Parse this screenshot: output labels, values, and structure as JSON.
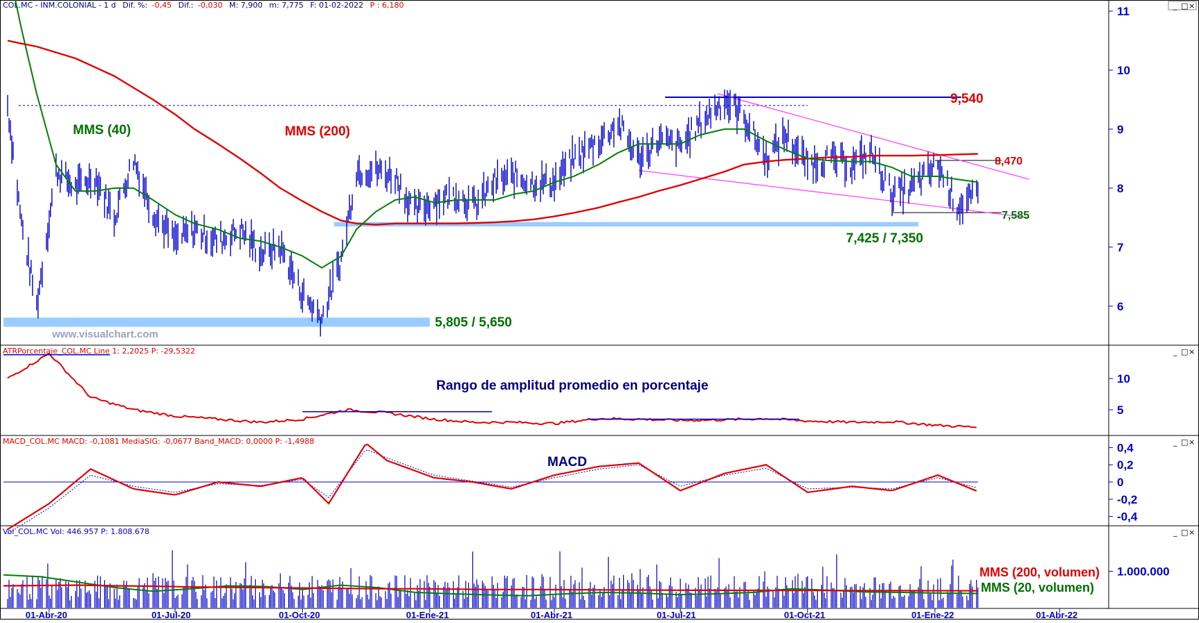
{
  "colors": {
    "price": "#0000cc",
    "mms200": "#e00000",
    "mms40": "#008000",
    "support": "#99ccff",
    "channel": "#ff44ff",
    "axis": "#0000cc",
    "text_green": "#007000",
    "text_red": "#e00000",
    "text_navy": "#000080",
    "watermark": "#a0a0c0"
  },
  "panels": {
    "price": {
      "header": {
        "title": "COL.MC - INM.COLONIAL - 1 d",
        "dif_pct_label": "Dif. %:",
        "dif_pct_value": "-0,45",
        "dif_label": "Dif.:",
        "dif_value": "-0,030",
        "max_label": "M: 7,900",
        "min_label": "m: 7,775",
        "date_label": "F: 01-02-2022",
        "p_label": "P : 6,180"
      },
      "labels": {
        "mms40": "MMS (40)",
        "mms200": "MMS (200)",
        "level_9540": "9,540",
        "level_8470": "8,470",
        "level_7585": "7,585",
        "support_high": "7,425 / 7,350",
        "support_low": "5,805 / 5,650",
        "watermark": "www.visualchart.com"
      }
    },
    "atr": {
      "header": "ATRPorcentaje_COL.MC  Line 1: 2,2025  P: -29,5322",
      "title": "Rango de amplitud promedio en porcentaje"
    },
    "macd": {
      "header": "MACD_COL.MC  MACD: -0,1081  MediaSIG: -0,0677  Band_MACD: 0,0000  P: -1,4988",
      "title": "MACD"
    },
    "volume": {
      "header": "Vol_COL.MC  Vol: 446.957  P: 1.808.678",
      "label_200": "MMS (200, volumen)",
      "label_20": "MMS (20, volumen)"
    }
  },
  "window_buttons": [
    "_",
    "□",
    "×"
  ],
  "chart_data": [
    {
      "type": "line",
      "panel": "price",
      "x": [
        "2020-03-02",
        "2020-03-12",
        "2020-03-23",
        "2020-04-06",
        "2020-04-20",
        "2020-05-04",
        "2020-05-18",
        "2020-06-01",
        "2020-06-15",
        "2020-07-01",
        "2020-07-15",
        "2020-08-01",
        "2020-08-17",
        "2020-09-01",
        "2020-09-15",
        "2020-10-01",
        "2020-10-15",
        "2020-10-29",
        "2020-11-09",
        "2020-11-23",
        "2020-12-07",
        "2020-12-21",
        "2021-01-05",
        "2021-01-20",
        "2021-02-03",
        "2021-02-17",
        "2021-03-03",
        "2021-03-17",
        "2021-04-01",
        "2021-04-15",
        "2021-05-03",
        "2021-05-17",
        "2021-06-01",
        "2021-06-15",
        "2021-07-01",
        "2021-07-15",
        "2021-08-02",
        "2021-08-16",
        "2021-09-01",
        "2021-09-15",
        "2021-10-01",
        "2021-10-15",
        "2021-11-02",
        "2021-11-16",
        "2021-12-01",
        "2021-12-15",
        "2022-01-03",
        "2022-01-17",
        "2022-02-01"
      ],
      "series": [
        {
          "name": "",
          "role": "price",
          "values": [
            9.4,
            7.4,
            6.0,
            8.3,
            8.0,
            8.2,
            7.5,
            8.5,
            7.6,
            7.1,
            7.3,
            7.1,
            7.3,
            6.9,
            7.0,
            6.2,
            5.8,
            6.8,
            8.3,
            8.3,
            8.2,
            7.6,
            7.8,
            7.9,
            7.7,
            8.1,
            8.2,
            8.1,
            8.1,
            8.5,
            8.8,
            9.1,
            8.5,
            8.8,
            8.7,
            9.1,
            9.5,
            9.2,
            8.5,
            8.9,
            8.4,
            8.5,
            8.4,
            8.6,
            7.9,
            8.0,
            8.4,
            7.7,
            7.85
          ]
        },
        {
          "name": "MMS (200)",
          "values": [
            10.5,
            10.45,
            10.4,
            10.3,
            10.2,
            10.05,
            9.9,
            9.7,
            9.5,
            9.25,
            9.0,
            8.75,
            8.5,
            8.25,
            8.0,
            7.78,
            7.6,
            7.45,
            7.4,
            7.38,
            7.4,
            7.4,
            7.4,
            7.4,
            7.41,
            7.42,
            7.44,
            7.47,
            7.52,
            7.58,
            7.67,
            7.76,
            7.85,
            7.95,
            8.05,
            8.15,
            8.28,
            8.4,
            8.45,
            8.48,
            8.5,
            8.52,
            8.53,
            8.55,
            8.55,
            8.55,
            8.56,
            8.57,
            8.58
          ]
        },
        {
          "name": "MMS (40)",
          "values": [
            11.8,
            10.7,
            9.6,
            8.4,
            7.95,
            7.95,
            8.0,
            8.0,
            7.8,
            7.55,
            7.4,
            7.3,
            7.15,
            7.1,
            7.0,
            6.85,
            6.65,
            6.85,
            7.3,
            7.6,
            7.8,
            7.85,
            7.75,
            7.8,
            7.8,
            7.8,
            7.9,
            7.95,
            8.1,
            8.2,
            8.4,
            8.6,
            8.75,
            8.75,
            8.75,
            8.9,
            9.0,
            9.0,
            8.8,
            8.65,
            8.5,
            8.47,
            8.45,
            8.45,
            8.35,
            8.2,
            8.2,
            8.15,
            8.1
          ]
        }
      ],
      "ylim": [
        5.35,
        11.0
      ],
      "yticks": [
        6,
        7,
        8,
        9,
        10,
        11
      ],
      "xticks": [
        "01-Abr-20",
        "01-Jul-20",
        "01-Oct-20",
        "01-Ene-21",
        "01-Abr-21",
        "01-Jul-21",
        "01-Oct-21",
        "01-Ene-22",
        "01-Abr-22"
      ],
      "annotations": {
        "resistance": 9.54,
        "resistance_2": 8.47,
        "support_minor": 7.585,
        "support_zone_high": [
          7.425,
          7.35
        ],
        "support_zone_low": [
          5.805,
          5.65
        ],
        "dashed_level": 9.4
      }
    },
    {
      "type": "line",
      "panel": "atr",
      "x": [
        "2020-03-02",
        "2020-04-01",
        "2020-05-01",
        "2020-06-01",
        "2020-07-01",
        "2020-08-01",
        "2020-09-01",
        "2020-10-01",
        "2020-11-02",
        "2020-12-01",
        "2021-01-04",
        "2021-02-01",
        "2021-03-01",
        "2021-04-01",
        "2021-05-03",
        "2021-06-01",
        "2021-07-01",
        "2021-08-02",
        "2021-09-01",
        "2021-10-01",
        "2021-11-02",
        "2021-12-01",
        "2022-01-03",
        "2022-02-01"
      ],
      "series": [
        {
          "name": "",
          "values": [
            10,
            14,
            7,
            5,
            4,
            3.5,
            3,
            3.5,
            5,
            4.5,
            3.5,
            3,
            3,
            2.8,
            3.6,
            3.5,
            3.3,
            3.4,
            3.6,
            3.2,
            3.0,
            3.1,
            2.5,
            2.2
          ]
        }
      ],
      "ylim": [
        1,
        15
      ],
      "yticks": [
        5,
        10
      ]
    },
    {
      "type": "line",
      "panel": "macd",
      "x": [
        "2020-03-02",
        "2020-04-01",
        "2020-05-01",
        "2020-06-01",
        "2020-07-01",
        "2020-08-01",
        "2020-09-01",
        "2020-10-01",
        "2020-10-20",
        "2020-11-16",
        "2020-12-01",
        "2021-01-04",
        "2021-02-01",
        "2021-03-01",
        "2021-04-01",
        "2021-05-03",
        "2021-06-01",
        "2021-07-01",
        "2021-08-02",
        "2021-09-01",
        "2021-10-01",
        "2021-11-02",
        "2021-12-01",
        "2022-01-03",
        "2022-02-01"
      ],
      "series": [
        {
          "name": "",
          "role": "macd",
          "values": [
            -0.55,
            -0.25,
            0.15,
            -0.08,
            -0.15,
            0.0,
            -0.05,
            0.05,
            -0.25,
            0.45,
            0.25,
            0.05,
            0.0,
            -0.08,
            0.08,
            0.18,
            0.22,
            -0.1,
            0.1,
            0.2,
            -0.12,
            -0.05,
            -0.1,
            0.08,
            -0.11
          ]
        },
        {
          "name": "",
          "role": "signal",
          "values": [
            -0.6,
            -0.3,
            0.08,
            -0.05,
            -0.12,
            -0.02,
            -0.04,
            0.03,
            -0.18,
            0.38,
            0.28,
            0.08,
            0.01,
            -0.06,
            0.05,
            0.15,
            0.2,
            -0.05,
            0.08,
            0.16,
            -0.08,
            -0.06,
            -0.08,
            0.05,
            -0.07
          ]
        }
      ],
      "ylim": [
        -0.5,
        0.5
      ],
      "yticks": [
        -0.4,
        -0.2,
        0,
        0.2,
        0.4
      ],
      "ytick_labels": [
        "-0,4",
        "-0,2",
        "0",
        "0,2",
        "0,4"
      ]
    },
    {
      "type": "bar",
      "panel": "volume",
      "ylim": [
        0,
        2000000
      ],
      "yticks": [
        1000000
      ],
      "ytick_labels": [
        "1.000.000"
      ],
      "series": [
        {
          "name": "MMS (200, volumen)",
          "values": [
            600000,
            610000,
            620000,
            600000,
            590000,
            570000,
            560000,
            550000,
            540000,
            530000,
            520000,
            520000,
            510000,
            500000,
            500000,
            495000,
            490000,
            485000,
            480000,
            478000,
            476000,
            474000,
            472000,
            470000,
            468000,
            466000,
            465000
          ]
        },
        {
          "name": "MMS (20, volumen)",
          "values": [
            900000,
            850000,
            700000,
            550000,
            450000,
            520000,
            600000,
            580000,
            500000,
            620000,
            550000,
            420000,
            380000,
            350000,
            330000,
            380000,
            420000,
            400000,
            360000,
            380000,
            420000,
            520000,
            480000,
            430000,
            420000,
            400000,
            390000
          ]
        }
      ]
    }
  ]
}
